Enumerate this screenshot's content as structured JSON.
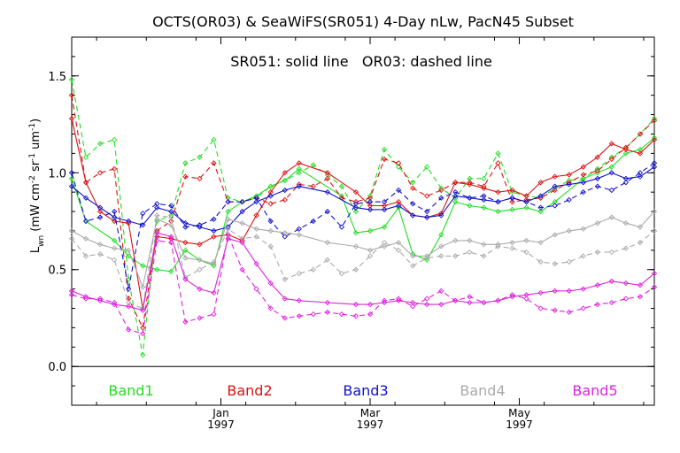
{
  "chart_data": {
    "type": "line",
    "title": "OCTS(OR03) & SeaWiFS(SR051) 4-Day nLw, PacN45 Subset",
    "annotation": "SR051: solid line   OR03: dashed line",
    "ylabel": "Lwn (mW cm-2 sr-1 um-1)",
    "ylabel_parts": {
      "base": "L",
      "sub": "wn",
      "units": [
        {
          "t": " (mW cm",
          "sup": false
        },
        {
          "t": "-2",
          "sup": true
        },
        {
          "t": " sr",
          "sup": false
        },
        {
          "t": "-1",
          "sup": true
        },
        {
          "t": " um",
          "sup": false
        },
        {
          "t": "-1",
          "sup": true
        },
        {
          "t": ")",
          "sup": false
        }
      ]
    },
    "ylim": [
      -0.2,
      1.7
    ],
    "yticks": [
      0.0,
      0.5,
      1.0,
      1.5
    ],
    "ytick_labels": [
      "0.0",
      "0.5",
      "1.0",
      "1.5"
    ],
    "xlim_days": [
      0,
      164
    ],
    "xticks": [
      {
        "day": 42,
        "label": "Jan",
        "year": "1997"
      },
      {
        "day": 84,
        "label": "Mar",
        "year": "1997"
      },
      {
        "day": 126,
        "label": "May",
        "year": "1997"
      }
    ],
    "zero_line": 0.0,
    "legend_placement": "bottom-inside",
    "colors": {
      "band1": "#22dd22",
      "band2": "#dd1111",
      "band3": "#1111cc",
      "band4": "#aaaaaa",
      "band5": "#dd22dd"
    },
    "series": [
      {
        "name": "Band1",
        "color": "#22dd22",
        "solid": {
          "x": [
            0,
            4,
            12,
            16,
            20,
            24,
            28,
            32,
            36,
            40,
            44,
            48,
            52,
            56,
            60,
            64,
            76,
            80,
            84,
            88,
            92,
            96,
            100,
            104,
            108,
            112,
            116,
            120,
            124,
            128,
            132,
            136,
            144,
            148,
            152,
            156,
            160,
            164
          ],
          "y": [
            0.97,
            0.75,
            0.65,
            0.57,
            0.52,
            0.5,
            0.49,
            0.6,
            0.55,
            0.52,
            0.8,
            0.85,
            0.88,
            0.93,
            0.96,
            1.02,
            0.88,
            0.69,
            0.7,
            0.72,
            0.82,
            0.58,
            0.55,
            0.68,
            0.85,
            0.83,
            0.82,
            0.8,
            0.81,
            0.82,
            0.8,
            0.85,
            0.97,
            1.0,
            1.03,
            1.1,
            1.12,
            1.18
          ]
        },
        "dashed": {
          "x": [
            0,
            4,
            8,
            12,
            16,
            20,
            24,
            28,
            32,
            36,
            40,
            44,
            48,
            52,
            56,
            60,
            64,
            68,
            72,
            76,
            80,
            84,
            88,
            92,
            96,
            100,
            104,
            108,
            112,
            116,
            120,
            124,
            128,
            132,
            136,
            140,
            144,
            148,
            152,
            156,
            160,
            164
          ],
          "y": [
            1.48,
            1.08,
            1.15,
            1.17,
            0.45,
            0.06,
            0.75,
            0.78,
            1.05,
            1.08,
            1.17,
            0.87,
            0.85,
            0.87,
            0.93,
            0.96,
            1.0,
            1.04,
            0.99,
            0.93,
            0.8,
            0.88,
            1.12,
            1.03,
            0.95,
            1.03,
            0.92,
            0.87,
            0.97,
            0.97,
            1.1,
            0.9,
            0.88,
            0.87,
            0.92,
            0.96,
            0.97,
            1.02,
            1.08,
            1.13,
            1.2,
            1.28
          ]
        }
      },
      {
        "name": "Band2",
        "color": "#dd1111",
        "solid": {
          "x": [
            0,
            4,
            8,
            12,
            16,
            20,
            24,
            28,
            32,
            36,
            40,
            44,
            48,
            52,
            56,
            60,
            64,
            72,
            80,
            84,
            88,
            92,
            96,
            100,
            104,
            108,
            112,
            116,
            120,
            124,
            128,
            132,
            136,
            140,
            144,
            148,
            152,
            156,
            160,
            164
          ],
          "y": [
            1.28,
            0.95,
            0.8,
            0.75,
            0.74,
            0.3,
            0.67,
            0.66,
            0.64,
            0.63,
            0.67,
            0.68,
            0.65,
            0.78,
            0.9,
            1.0,
            1.05,
            1.0,
            0.9,
            0.83,
            0.83,
            0.85,
            0.78,
            0.77,
            0.79,
            0.95,
            0.94,
            0.92,
            0.9,
            0.91,
            0.88,
            0.95,
            0.98,
            0.99,
            1.03,
            1.08,
            1.15,
            1.12,
            1.1,
            1.17
          ]
        },
        "dashed": {
          "x": [
            0,
            4,
            8,
            12,
            16,
            20,
            24,
            28,
            32,
            36,
            40,
            44,
            48,
            52,
            56,
            60,
            64,
            68,
            72,
            76,
            80,
            84,
            88,
            92,
            96,
            100,
            104,
            108,
            112,
            116,
            120,
            124,
            128,
            132,
            136,
            140,
            144,
            148,
            152,
            156,
            160,
            164
          ],
          "y": [
            1.4,
            0.95,
            1.0,
            1.02,
            0.35,
            0.2,
            0.7,
            0.75,
            0.98,
            0.97,
            1.05,
            0.85,
            0.85,
            0.87,
            0.84,
            0.86,
            0.94,
            0.93,
            0.97,
            0.87,
            0.85,
            0.87,
            1.07,
            1.05,
            0.92,
            0.88,
            0.91,
            0.95,
            0.95,
            0.93,
            1.05,
            0.85,
            0.86,
            0.87,
            0.91,
            0.95,
            0.99,
            1.01,
            1.07,
            1.13,
            1.2,
            1.27
          ]
        }
      },
      {
        "name": "Band3",
        "color": "#1111cc",
        "solid": {
          "x": [
            0,
            4,
            8,
            12,
            16,
            20,
            24,
            28,
            32,
            36,
            40,
            44,
            48,
            52,
            56,
            60,
            64,
            72,
            80,
            84,
            88,
            92,
            96,
            100,
            104,
            108,
            112,
            116,
            120,
            124,
            128,
            132,
            136,
            140,
            144,
            148,
            152,
            156,
            160,
            164
          ],
          "y": [
            0.93,
            0.87,
            0.82,
            0.77,
            0.75,
            0.73,
            0.82,
            0.8,
            0.74,
            0.72,
            0.7,
            0.72,
            0.8,
            0.85,
            0.88,
            0.91,
            0.93,
            0.9,
            0.82,
            0.81,
            0.81,
            0.83,
            0.78,
            0.77,
            0.78,
            0.88,
            0.87,
            0.86,
            0.85,
            0.87,
            0.85,
            0.88,
            0.93,
            0.94,
            0.95,
            0.97,
            1.0,
            0.97,
            0.98,
            1.03
          ]
        },
        "dashed": {
          "x": [
            0,
            4,
            8,
            12,
            16,
            20,
            24,
            28,
            32,
            36,
            40,
            44,
            48,
            52,
            56,
            60,
            64,
            68,
            72,
            76,
            80,
            84,
            88,
            92,
            96,
            100,
            104,
            108,
            112,
            116,
            120,
            124,
            128,
            132,
            136,
            140,
            144,
            148,
            152,
            156,
            160,
            164
          ],
          "y": [
            1.0,
            0.75,
            0.77,
            0.8,
            0.4,
            0.79,
            0.84,
            0.83,
            0.72,
            0.73,
            0.76,
            0.85,
            0.85,
            0.87,
            0.75,
            0.67,
            0.71,
            0.75,
            0.8,
            0.72,
            0.84,
            0.85,
            0.85,
            0.91,
            0.84,
            0.8,
            0.87,
            0.9,
            0.87,
            0.88,
            0.85,
            0.87,
            0.85,
            0.82,
            0.83,
            0.86,
            0.9,
            0.93,
            0.91,
            0.95,
            1.0,
            1.05
          ]
        }
      },
      {
        "name": "Band4",
        "color": "#aaaaaa",
        "solid": {
          "x": [
            0,
            4,
            8,
            12,
            16,
            20,
            24,
            28,
            32,
            36,
            40,
            44,
            48,
            52,
            56,
            60,
            64,
            72,
            80,
            84,
            88,
            92,
            96,
            100,
            104,
            108,
            112,
            116,
            120,
            124,
            128,
            132,
            136,
            140,
            144,
            148,
            152,
            156,
            160,
            164
          ],
          "y": [
            0.7,
            0.66,
            0.63,
            0.61,
            0.6,
            0.41,
            0.76,
            0.73,
            0.56,
            0.55,
            0.53,
            0.76,
            0.74,
            0.71,
            0.7,
            0.69,
            0.68,
            0.64,
            0.62,
            0.6,
            0.62,
            0.64,
            0.57,
            0.57,
            0.62,
            0.65,
            0.65,
            0.63,
            0.63,
            0.64,
            0.65,
            0.64,
            0.68,
            0.7,
            0.71,
            0.74,
            0.77,
            0.74,
            0.72,
            0.8
          ]
        },
        "dashed": {
          "x": [
            0,
            4,
            8,
            12,
            16,
            20,
            24,
            28,
            32,
            36,
            40,
            44,
            48,
            52,
            56,
            60,
            64,
            68,
            72,
            76,
            80,
            84,
            88,
            92,
            96,
            100,
            104,
            108,
            112,
            116,
            120,
            124,
            128,
            132,
            136,
            140,
            144,
            148,
            152,
            156,
            160,
            164
          ],
          "y": [
            0.66,
            0.57,
            0.58,
            0.55,
            0.33,
            0.3,
            0.78,
            0.77,
            0.46,
            0.5,
            0.54,
            0.71,
            0.66,
            0.67,
            0.62,
            0.45,
            0.48,
            0.5,
            0.55,
            0.48,
            0.5,
            0.57,
            0.64,
            0.6,
            0.52,
            0.56,
            0.57,
            0.57,
            0.59,
            0.57,
            0.62,
            0.61,
            0.59,
            0.54,
            0.53,
            0.54,
            0.57,
            0.59,
            0.59,
            0.61,
            0.64,
            0.7
          ]
        }
      },
      {
        "name": "Band5",
        "color": "#dd22dd",
        "solid": {
          "x": [
            0,
            4,
            8,
            12,
            16,
            20,
            24,
            28,
            32,
            36,
            40,
            44,
            48,
            52,
            56,
            60,
            64,
            72,
            80,
            84,
            88,
            92,
            96,
            100,
            104,
            108,
            112,
            116,
            120,
            124,
            128,
            132,
            136,
            140,
            144,
            148,
            152,
            156,
            160,
            164
          ],
          "y": [
            0.39,
            0.36,
            0.34,
            0.32,
            0.31,
            0.29,
            0.69,
            0.67,
            0.45,
            0.4,
            0.38,
            0.66,
            0.64,
            0.53,
            0.43,
            0.35,
            0.34,
            0.33,
            0.32,
            0.32,
            0.33,
            0.34,
            0.33,
            0.32,
            0.32,
            0.34,
            0.33,
            0.33,
            0.34,
            0.36,
            0.37,
            0.38,
            0.39,
            0.39,
            0.4,
            0.42,
            0.44,
            0.43,
            0.42,
            0.48
          ]
        },
        "dashed": {
          "x": [
            0,
            4,
            8,
            12,
            16,
            20,
            24,
            28,
            32,
            36,
            40,
            44,
            48,
            52,
            56,
            60,
            64,
            68,
            72,
            76,
            80,
            84,
            88,
            92,
            96,
            100,
            104,
            108,
            112,
            116,
            120,
            124,
            128,
            132,
            136,
            140,
            144,
            148,
            152,
            156,
            160,
            164
          ],
          "y": [
            0.37,
            0.35,
            0.35,
            0.33,
            0.19,
            0.17,
            0.65,
            0.64,
            0.23,
            0.25,
            0.27,
            0.68,
            0.5,
            0.4,
            0.3,
            0.25,
            0.26,
            0.27,
            0.28,
            0.27,
            0.26,
            0.27,
            0.34,
            0.35,
            0.31,
            0.35,
            0.39,
            0.34,
            0.36,
            0.33,
            0.34,
            0.37,
            0.35,
            0.3,
            0.29,
            0.28,
            0.3,
            0.32,
            0.33,
            0.35,
            0.36,
            0.41
          ]
        }
      }
    ]
  }
}
